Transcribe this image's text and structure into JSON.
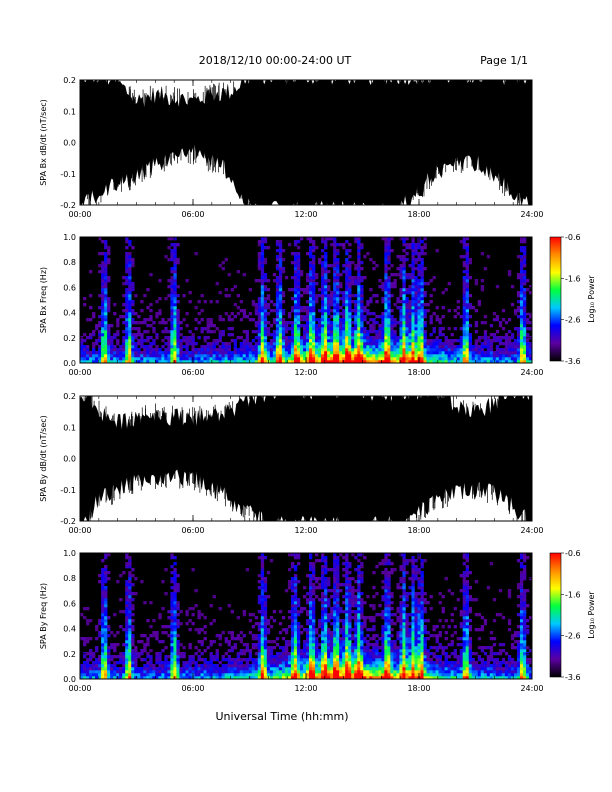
{
  "header": {
    "title": "2018/12/10   00:00-24:00 UT",
    "page": "Page 1/1"
  },
  "footer": {
    "xlabel": "Universal Time (hh:mm)"
  },
  "chart_data": [
    {
      "type": "area",
      "ylabel": "SPA Bx dB/dt (nT/sec)",
      "xlim": [
        0,
        24
      ],
      "ylim": [
        -0.2,
        0.2
      ],
      "x_ticks": [
        "00:00",
        "06:00",
        "12:00",
        "18:00",
        "24:00"
      ],
      "y_ticks": [
        "-0.2",
        "-0.1",
        "0.0",
        "0.1",
        "0.2"
      ],
      "envelope": {
        "hour": [
          0,
          1,
          2,
          3,
          4,
          5,
          6,
          7,
          8,
          9,
          10,
          11,
          12,
          13,
          14,
          15,
          16,
          17,
          18,
          19,
          20,
          21,
          22,
          23,
          24
        ],
        "upper": [
          0.2,
          0.2,
          0.18,
          0.12,
          0.14,
          0.13,
          0.12,
          0.14,
          0.15,
          0.2,
          0.2,
          0.2,
          0.2,
          0.2,
          0.2,
          0.2,
          0.2,
          0.2,
          0.2,
          0.2,
          0.2,
          0.2,
          0.2,
          0.2,
          0.2
        ],
        "lower": [
          -0.2,
          -0.15,
          -0.12,
          -0.1,
          -0.06,
          -0.03,
          -0.02,
          -0.05,
          -0.09,
          -0.2,
          -0.2,
          -0.2,
          -0.2,
          -0.2,
          -0.2,
          -0.2,
          -0.2,
          -0.2,
          -0.14,
          -0.08,
          -0.05,
          -0.05,
          -0.09,
          -0.15,
          -0.2
        ]
      }
    },
    {
      "type": "heatmap",
      "ylabel": "SPA Bx Freq (Hz)",
      "xlim": [
        0,
        24
      ],
      "ylim": [
        0.0,
        1.0
      ],
      "x_ticks": [
        "00:00",
        "06:00",
        "12:00",
        "18:00",
        "24:00"
      ],
      "y_ticks": [
        "0.0",
        "0.2",
        "0.4",
        "0.6",
        "0.8",
        "1.0"
      ],
      "colorbar": {
        "label": "Log₁₀ Power",
        "ticks": [
          "-0.6",
          "-1.6",
          "-2.6",
          "-3.6"
        ],
        "range": [
          -3.6,
          -0.6
        ],
        "colors": [
          "#000000",
          "#5a00a0",
          "#0000ff",
          "#00c8ff",
          "#00ff40",
          "#ffff00",
          "#ff8c00",
          "#ff0000"
        ]
      },
      "burst_hours": [
        1.3,
        2.6,
        5.0,
        9.7,
        10.6,
        11.5,
        12.3,
        13.0,
        13.6,
        14.2,
        14.8,
        16.3,
        17.2,
        17.7,
        18.1,
        20.5,
        23.5
      ]
    },
    {
      "type": "area",
      "ylabel": "SPA By dB/dt (nT/sec)",
      "xlim": [
        0,
        24
      ],
      "ylim": [
        -0.2,
        0.2
      ],
      "x_ticks": [
        "00:00",
        "06:00",
        "12:00",
        "18:00",
        "24:00"
      ],
      "y_ticks": [
        "-0.2",
        "-0.1",
        "0.0",
        "0.1",
        "0.2"
      ],
      "envelope": {
        "hour": [
          0,
          1,
          2,
          3,
          4,
          5,
          6,
          7,
          8,
          9,
          10,
          11,
          12,
          13,
          14,
          15,
          16,
          17,
          18,
          19,
          20,
          21,
          22,
          23,
          24
        ],
        "upper": [
          0.2,
          0.14,
          0.1,
          0.12,
          0.13,
          0.12,
          0.12,
          0.12,
          0.14,
          0.17,
          0.2,
          0.2,
          0.2,
          0.2,
          0.2,
          0.2,
          0.2,
          0.2,
          0.2,
          0.2,
          0.15,
          0.14,
          0.16,
          0.2,
          0.2
        ],
        "lower": [
          -0.2,
          -0.12,
          -0.09,
          -0.06,
          -0.05,
          -0.05,
          -0.05,
          -0.08,
          -0.12,
          -0.16,
          -0.2,
          -0.2,
          -0.2,
          -0.2,
          -0.2,
          -0.2,
          -0.2,
          -0.2,
          -0.16,
          -0.12,
          -0.09,
          -0.09,
          -0.1,
          -0.14,
          -0.2
        ]
      }
    },
    {
      "type": "heatmap",
      "ylabel": "SPA By Freq (Hz)",
      "xlim": [
        0,
        24
      ],
      "ylim": [
        0.0,
        1.0
      ],
      "x_ticks": [
        "00:00",
        "06:00",
        "12:00",
        "18:00",
        "24:00"
      ],
      "y_ticks": [
        "0.0",
        "0.2",
        "0.4",
        "0.6",
        "0.8",
        "1.0"
      ],
      "colorbar": {
        "label": "Log₁₀ Power",
        "ticks": [
          "-0.6",
          "-1.6",
          "-2.6",
          "-3.6"
        ],
        "range": [
          -3.6,
          -0.6
        ],
        "colors": [
          "#000000",
          "#5a00a0",
          "#0000ff",
          "#00c8ff",
          "#00ff40",
          "#ffff00",
          "#ff8c00",
          "#ff0000"
        ]
      },
      "burst_hours": [
        1.3,
        2.6,
        5.0,
        9.7,
        11.4,
        12.3,
        13.0,
        13.6,
        14.2,
        14.8,
        16.3,
        17.2,
        17.7,
        18.1,
        20.5,
        23.5
      ]
    }
  ]
}
